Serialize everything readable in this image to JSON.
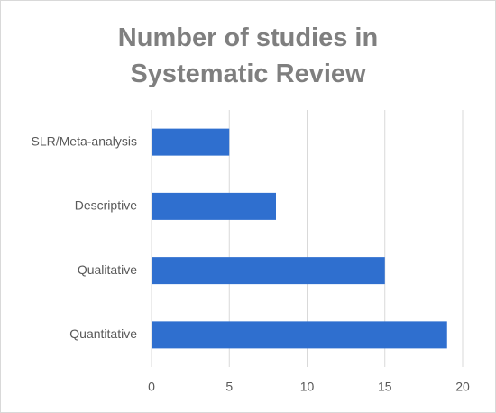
{
  "chart_data": {
    "type": "bar",
    "orientation": "horizontal",
    "title": "Number of studies in Systematic Review",
    "categories": [
      "SLR/Meta-analysis",
      "Descriptive",
      "Qualitative",
      "Quantitative"
    ],
    "values": [
      5,
      8,
      15,
      19
    ],
    "color": "#2f6fcf",
    "xlim": [
      0,
      20
    ],
    "xticks": [
      0,
      5,
      10,
      15,
      20
    ],
    "grid": true
  }
}
